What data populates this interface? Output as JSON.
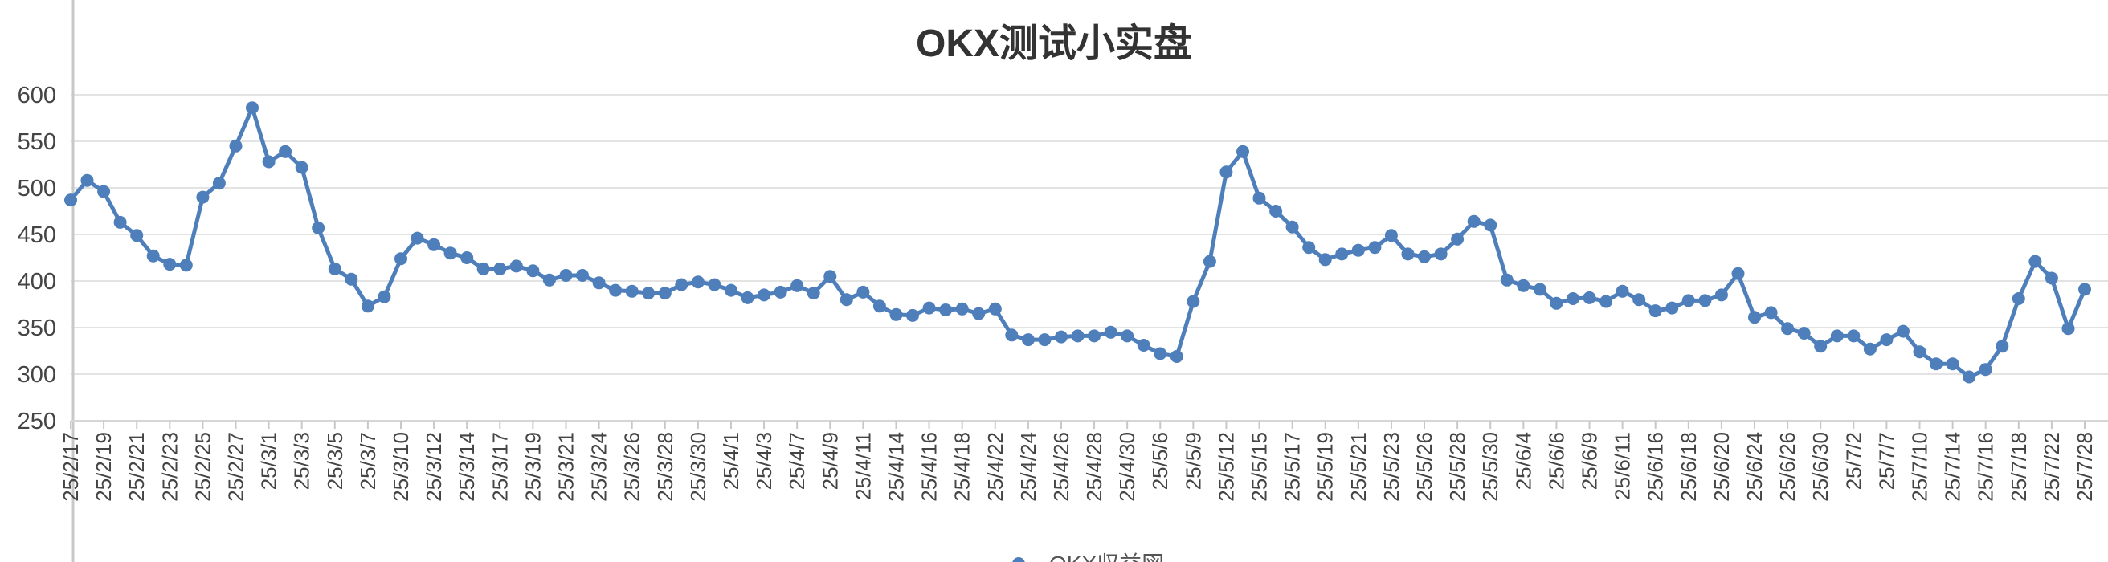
{
  "chart_data": {
    "type": "line",
    "title": "OKX测试小实盘",
    "xlabel": "",
    "ylabel": "",
    "ylim": [
      250,
      600
    ],
    "yticks": [
      250,
      300,
      350,
      400,
      450,
      500,
      550,
      600
    ],
    "grid": true,
    "legend_placement": "bottom",
    "color": "#4e7fbb",
    "x_tick_labels": [
      "25/2/17",
      "25/2/19",
      "25/2/21",
      "25/2/23",
      "25/2/25",
      "25/2/27",
      "25/3/1",
      "25/3/3",
      "25/3/5",
      "25/3/7",
      "25/3/10",
      "25/3/12",
      "25/3/14",
      "25/3/17",
      "25/3/19",
      "25/3/21",
      "25/3/24",
      "25/3/26",
      "25/3/28",
      "25/3/30",
      "25/4/1",
      "25/4/3",
      "25/4/7",
      "25/4/9",
      "25/4/11",
      "25/4/14",
      "25/4/16",
      "25/4/18",
      "25/4/22",
      "25/4/24",
      "25/4/26",
      "25/4/28",
      "25/4/30",
      "25/5/6",
      "25/5/9",
      "25/5/12",
      "25/5/15",
      "25/5/17",
      "25/5/19",
      "25/5/21",
      "25/5/23",
      "25/5/26",
      "25/5/28",
      "25/5/30",
      "25/6/4",
      "25/6/6",
      "25/6/9",
      "25/6/11",
      "25/6/16",
      "25/6/18",
      "25/6/20",
      "25/6/24",
      "25/6/26",
      "25/6/30",
      "25/7/2",
      "25/7/7",
      "25/7/10",
      "25/7/14",
      "25/7/16",
      "25/7/18",
      "25/7/22",
      "25/7/28"
    ],
    "series": [
      {
        "name": "OKX収益図",
        "values": [
          487,
          508,
          496,
          463,
          449,
          427,
          418,
          417,
          490,
          505,
          545,
          586,
          528,
          539,
          522,
          457,
          413,
          402,
          373,
          383,
          424,
          446,
          439,
          430,
          425,
          413,
          413,
          416,
          411,
          401,
          406,
          406,
          398,
          390,
          389,
          387,
          387,
          396,
          399,
          396,
          390,
          382,
          385,
          388,
          395,
          387,
          405,
          380,
          388,
          373,
          364,
          363,
          371,
          369,
          370,
          365,
          370,
          342,
          337,
          337,
          340,
          341,
          341,
          345,
          341,
          331,
          322,
          319,
          378,
          421,
          517,
          539,
          489,
          475,
          458,
          436,
          423,
          429,
          433,
          436,
          449,
          429,
          426,
          429,
          445,
          464,
          460,
          401,
          395,
          391,
          376,
          381,
          382,
          378,
          389,
          380,
          368,
          371,
          379,
          379,
          385,
          408,
          361,
          366,
          349,
          344,
          330,
          341,
          341,
          327,
          337,
          346,
          324,
          311,
          311,
          297,
          305,
          330,
          381,
          421,
          403,
          349,
          391
        ]
      }
    ]
  },
  "legend": {
    "label": "OKX収益図"
  }
}
